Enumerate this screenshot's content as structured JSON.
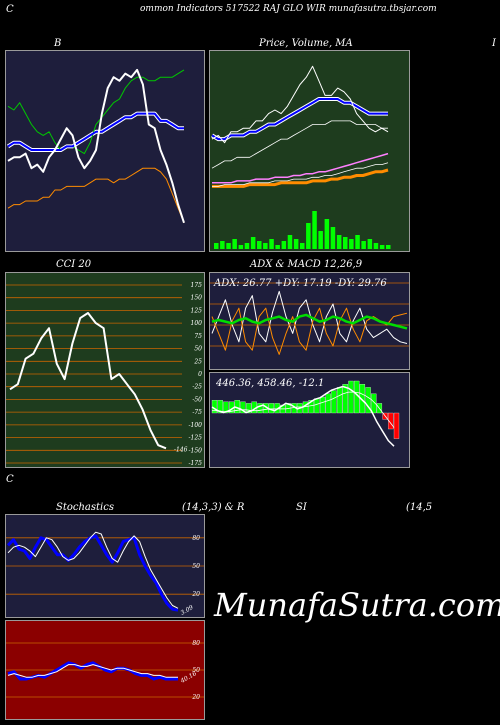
{
  "header": {
    "left_letter": "C",
    "title": "ommon  Indicators 517522  RAJ GLO WIR munafasutra.tbsjar.com"
  },
  "labels": {
    "bb": "B",
    "price_ma": "Price,  Volume,  MA",
    "right_letter": "I",
    "cci": "CCI 20",
    "adx_macd": "ADX  & MACD 12,26,9",
    "bottom_left_letter": "C",
    "stochastics": "Stochastics",
    "stoch_params": "(14,3,3) & R",
    "si": "SI",
    "si_params": "(14,5"
  },
  "watermark": "MunafaSutra.com",
  "colors": {
    "bb_bg": "#1e1e3c",
    "price_bg": "#1e3c1e",
    "cci_bg": "#1e3c1e",
    "adx_bg": "#1e1e3c",
    "stoch_bg": "#1e1e3c",
    "rsi_bg": "#8b0000",
    "price_line": "#ffffff",
    "upper_band": "#00c800",
    "middle_band": "#0000ff",
    "lower_band": "#ff8c00",
    "volume": "#00ff00",
    "grid_orange": "#c86400"
  },
  "chart_data": [
    {
      "type": "line",
      "panel": "bollinger",
      "ylim": [
        0,
        100
      ],
      "series": [
        {
          "values": [
            44,
            46,
            46,
            48,
            40,
            42,
            38,
            46,
            50,
            56,
            62,
            58,
            46,
            40,
            44,
            50,
            70,
            84,
            90,
            88,
            92,
            90,
            94,
            86,
            64,
            62,
            50,
            42,
            32,
            20,
            10
          ]
        },
        {
          "values": [
            74,
            72,
            76,
            70,
            64,
            60,
            58,
            60,
            54,
            50,
            52,
            52,
            50,
            48,
            54,
            64,
            68,
            72,
            76,
            78,
            84,
            88,
            90,
            90,
            88,
            88,
            90,
            90,
            90,
            92,
            94
          ]
        },
        {
          "values": [
            52,
            54,
            54,
            52,
            50,
            50,
            50,
            50,
            50,
            50,
            52,
            52,
            54,
            56,
            58,
            60,
            60,
            62,
            64,
            66,
            68,
            68,
            70,
            70,
            70,
            70,
            66,
            66,
            64,
            62,
            62
          ]
        },
        {
          "values": [
            18,
            20,
            20,
            22,
            22,
            22,
            24,
            24,
            28,
            28,
            30,
            30,
            30,
            30,
            32,
            34,
            34,
            34,
            32,
            34,
            34,
            36,
            38,
            40,
            40,
            40,
            38,
            34,
            26,
            18,
            10
          ]
        }
      ]
    },
    {
      "type": "line",
      "panel": "price_volume_ma",
      "ylim": [
        0,
        100
      ],
      "series": [
        {
          "values": [
            56,
            58,
            54,
            60,
            60,
            62,
            62,
            66,
            66,
            70,
            72,
            70,
            74,
            80,
            86,
            90,
            96,
            88,
            80,
            80,
            84,
            82,
            78,
            70,
            66,
            62,
            60,
            62,
            60
          ]
        },
        {
          "values": [
            58,
            56,
            56,
            58,
            58,
            58,
            60,
            60,
            62,
            64,
            64,
            66,
            68,
            70,
            72,
            74,
            76,
            78,
            78,
            78,
            78,
            76,
            76,
            74,
            72,
            70,
            70,
            70,
            70
          ]
        },
        {
          "values": [
            40,
            42,
            44,
            44,
            46,
            46,
            46,
            48,
            50,
            52,
            54,
            56,
            56,
            58,
            60,
            62,
            64,
            64,
            64,
            66,
            66,
            66,
            66,
            64,
            64,
            64,
            64,
            62,
            62
          ]
        },
        {
          "values": [
            32,
            32,
            32,
            32,
            33,
            33,
            33,
            34,
            34,
            34,
            35,
            35,
            35,
            36,
            36,
            37,
            37,
            38,
            38,
            39,
            40,
            41,
            42,
            43,
            44,
            45,
            46,
            47,
            48
          ]
        },
        {
          "values": [
            30,
            30,
            31,
            31,
            31,
            31,
            32,
            32,
            32,
            32,
            33,
            33,
            33,
            34,
            34,
            34,
            35,
            35,
            36,
            36,
            37,
            38,
            39,
            40,
            40,
            41,
            42,
            42,
            43
          ]
        },
        {
          "values": [
            30,
            30,
            30,
            30,
            30,
            30,
            31,
            31,
            31,
            31,
            31,
            32,
            32,
            32,
            32,
            32,
            33,
            33,
            33,
            34,
            34,
            35,
            35,
            36,
            36,
            37,
            38,
            38,
            39
          ]
        }
      ],
      "volume": [
        6,
        8,
        6,
        10,
        4,
        6,
        12,
        8,
        6,
        10,
        4,
        8,
        14,
        10,
        6,
        26,
        38,
        18,
        30,
        22,
        14,
        12,
        10,
        14,
        8,
        10,
        6,
        4,
        4
      ]
    },
    {
      "type": "line",
      "panel": "cci",
      "ylim": [
        -175,
        175
      ],
      "ticks": [
        175,
        150,
        125,
        100,
        75,
        50,
        25,
        0,
        -25,
        -50,
        -75,
        -100,
        -125,
        -150,
        -175
      ],
      "last_value": -146,
      "values": [
        -30,
        -20,
        30,
        40,
        70,
        90,
        20,
        -10,
        60,
        110,
        120,
        100,
        90,
        -10,
        0,
        -20,
        -40,
        -70,
        -110,
        -140,
        -146
      ]
    },
    {
      "type": "line",
      "panel": "adx",
      "adx": 26.77,
      "plus_di": 17.19,
      "minus_di": 29.76,
      "ticks": [
        100,
        75,
        50,
        25
      ]
    },
    {
      "type": "bar",
      "panel": "macd",
      "macd": 446.36,
      "signal": 458.46,
      "histogram": -12.1,
      "hist_values": [
        8,
        8,
        7,
        7,
        8,
        7,
        6,
        7,
        6,
        6,
        6,
        6,
        5,
        6,
        6,
        6,
        7,
        8,
        9,
        10,
        12,
        14,
        16,
        18,
        20,
        20,
        18,
        16,
        12,
        6,
        -4,
        -10,
        -16
      ]
    },
    {
      "type": "line",
      "panel": "stochastics",
      "ylim": [
        0,
        100
      ],
      "ticks": [
        80,
        50,
        20
      ],
      "last_value": "3.09",
      "series": [
        {
          "values": [
            72,
            78,
            68,
            66,
            58,
            70,
            80,
            78,
            70,
            62,
            62,
            56,
            62,
            70,
            76,
            80,
            82,
            72,
            62,
            54,
            64,
            76,
            78,
            80,
            62,
            50,
            40,
            32,
            20,
            10,
            4,
            3
          ]
        },
        {
          "values": [
            64,
            70,
            72,
            70,
            66,
            60,
            70,
            80,
            78,
            70,
            60,
            56,
            58,
            64,
            72,
            80,
            86,
            84,
            70,
            58,
            54,
            66,
            76,
            82,
            76,
            60,
            46,
            36,
            26,
            16,
            8,
            5
          ]
        }
      ]
    },
    {
      "type": "line",
      "panel": "rsi",
      "ylim": [
        0,
        100
      ],
      "ticks": [
        80,
        50,
        20
      ],
      "last_value": "40.16",
      "series": [
        {
          "values": [
            46,
            48,
            40,
            40,
            42,
            44,
            42,
            46,
            50,
            54,
            58,
            56,
            52,
            56,
            58,
            54,
            50,
            48,
            52,
            52,
            50,
            46,
            44,
            44,
            40,
            42,
            40,
            40,
            40
          ]
        },
        {
          "values": [
            44,
            46,
            44,
            42,
            42,
            44,
            44,
            46,
            48,
            52,
            56,
            56,
            54,
            54,
            56,
            54,
            52,
            50,
            52,
            52,
            50,
            48,
            46,
            46,
            44,
            44,
            42,
            42,
            42
          ]
        }
      ]
    }
  ]
}
